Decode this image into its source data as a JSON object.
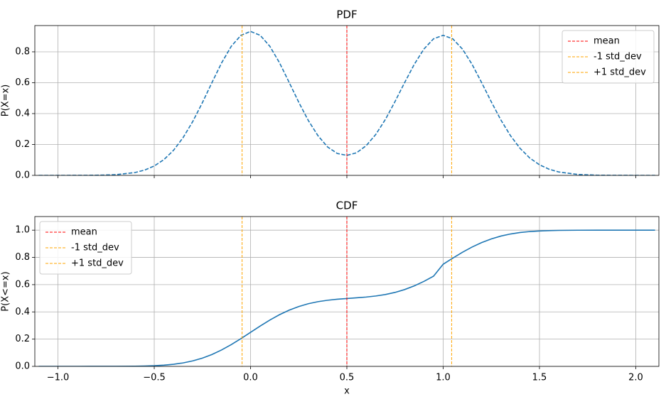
{
  "chart_data": [
    {
      "type": "line",
      "title": "PDF",
      "ylabel": "P(X=x)",
      "x": [
        -1.1,
        -1.0,
        -0.9,
        -0.8,
        -0.7,
        -0.6,
        -0.55,
        -0.5,
        -0.45,
        -0.4,
        -0.35,
        -0.3,
        -0.25,
        -0.2,
        -0.15,
        -0.1,
        -0.05,
        0,
        0.05,
        0.1,
        0.15,
        0.2,
        0.25,
        0.3,
        0.35,
        0.4,
        0.45,
        0.5,
        0.55,
        0.6,
        0.65,
        0.7,
        0.75,
        0.8,
        0.85,
        0.9,
        0.95,
        1.0,
        1.05,
        1.1,
        1.15,
        1.2,
        1.25,
        1.3,
        1.35,
        1.4,
        1.45,
        1.5,
        1.55,
        1.6,
        1.7,
        1.8,
        1.9,
        2.0,
        2.1
      ],
      "series": [
        {
          "color": "#1f77b4",
          "dashed": true,
          "values": [
            0,
            0,
            0.0001,
            0.0009,
            0.0044,
            0.0183,
            0.0343,
            0.0609,
            0.102,
            0.162,
            0.245,
            0.349,
            0.471,
            0.602,
            0.729,
            0.836,
            0.907,
            0.932,
            0.907,
            0.836,
            0.73,
            0.603,
            0.474,
            0.355,
            0.257,
            0.184,
            0.142,
            0.1295,
            0.146,
            0.192,
            0.265,
            0.362,
            0.478,
            0.601,
            0.719,
            0.818,
            0.884,
            0.907,
            0.884,
            0.818,
            0.719,
            0.6,
            0.476,
            0.358,
            0.256,
            0.174,
            0.112,
            0.0686,
            0.0398,
            0.022,
            0.0058,
            0.0012,
            0.0002,
            0,
            0
          ]
        }
      ],
      "vlines": [
        {
          "name": "mean",
          "x": 0.5,
          "color": "#ff0000"
        },
        {
          "name": "-1 std_dev",
          "x": -0.044,
          "color": "#ffa500"
        },
        {
          "name": "+1 std_dev",
          "x": 1.044,
          "color": "#ffa500"
        }
      ],
      "xlim": [
        -1.12,
        2.12
      ],
      "xticks": [
        -1,
        -0.5,
        0,
        0.5,
        1,
        1.5,
        2
      ],
      "xticklabels": false,
      "ylim": [
        0,
        0.97
      ],
      "yticks": [
        {
          "value": 0,
          "label": "0.0"
        },
        {
          "value": 0.2,
          "label": "0.2"
        },
        {
          "value": 0.4,
          "label": "0.4"
        },
        {
          "value": 0.6,
          "label": "0.6"
        },
        {
          "value": 0.8,
          "label": "0.8"
        }
      ],
      "grid": true,
      "legend": "upper right"
    },
    {
      "type": "line",
      "title": "CDF",
      "ylabel": "P(X<=x)",
      "xlabel": "x",
      "x": [
        -1.1,
        -1.0,
        -0.9,
        -0.8,
        -0.7,
        -0.6,
        -0.55,
        -0.5,
        -0.45,
        -0.4,
        -0.35,
        -0.3,
        -0.25,
        -0.2,
        -0.15,
        -0.1,
        -0.05,
        0,
        0.05,
        0.1,
        0.15,
        0.2,
        0.25,
        0.3,
        0.35,
        0.4,
        0.45,
        0.5,
        0.55,
        0.6,
        0.65,
        0.7,
        0.75,
        0.8,
        0.85,
        0.9,
        0.95,
        1.0,
        1.05,
        1.1,
        1.15,
        1.2,
        1.25,
        1.3,
        1.35,
        1.4,
        1.45,
        1.5,
        1.55,
        1.6,
        1.7,
        1.8,
        1.9,
        2.0,
        2.1
      ],
      "series": [
        {
          "color": "#1f77b4",
          "dashed": false,
          "values": [
            0,
            0,
            0,
            0.0001,
            0.0003,
            0.0013,
            0.0026,
            0.0049,
            0.0089,
            0.0154,
            0.0255,
            0.0403,
            0.0607,
            0.0875,
            0.1209,
            0.1601,
            0.2038,
            0.25,
            0.2963,
            0.3399,
            0.3792,
            0.4126,
            0.4394,
            0.46,
            0.475,
            0.4854,
            0.4928,
            0.4983,
            0.5033,
            0.509,
            0.5167,
            0.5277,
            0.543,
            0.564,
            0.5909,
            0.6239,
            0.6624,
            0.75,
            0.7949,
            0.8376,
            0.8761,
            0.9091,
            0.936,
            0.9569,
            0.9721,
            0.9828,
            0.9898,
            0.9942,
            0.9969,
            0.9984,
            0.9997,
            1.0,
            1.0,
            1.0,
            1.0
          ]
        }
      ],
      "vlines": [
        {
          "name": "mean",
          "x": 0.5,
          "color": "#ff0000"
        },
        {
          "name": "-1 std_dev",
          "x": -0.044,
          "color": "#ffa500"
        },
        {
          "name": "+1 std_dev",
          "x": 1.044,
          "color": "#ffa500"
        }
      ],
      "xlim": [
        -1.12,
        2.12
      ],
      "xticks": [
        {
          "value": -1,
          "label": "−1.0"
        },
        {
          "value": -0.5,
          "label": "−0.5"
        },
        {
          "value": 0,
          "label": "0.0"
        },
        {
          "value": 0.5,
          "label": "0.5"
        },
        {
          "value": 1,
          "label": "1.0"
        },
        {
          "value": 1.5,
          "label": "1.5"
        },
        {
          "value": 2,
          "label": "2.0"
        }
      ],
      "xticklabels": true,
      "ylim": [
        0,
        1.1
      ],
      "yticks": [
        {
          "value": 0,
          "label": "0.0"
        },
        {
          "value": 0.2,
          "label": "0.2"
        },
        {
          "value": 0.4,
          "label": "0.4"
        },
        {
          "value": 0.6,
          "label": "0.6"
        },
        {
          "value": 0.8,
          "label": "0.8"
        },
        {
          "value": 1,
          "label": "1.0"
        }
      ],
      "grid": true,
      "legend": "upper left"
    }
  ]
}
